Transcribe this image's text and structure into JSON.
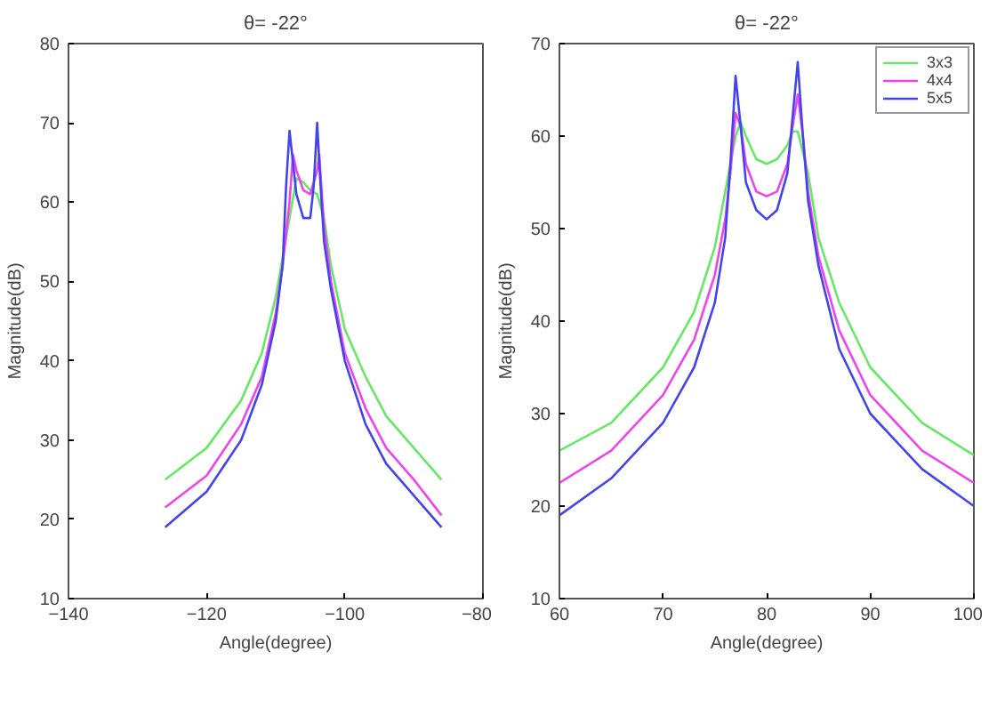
{
  "chart_data": [
    {
      "type": "line",
      "title": "θ= -22°",
      "xlabel": "Angle(degree)",
      "ylabel": "Magnitude(dB)",
      "xlim": [
        -140,
        -80
      ],
      "xticks": [
        -140,
        -120,
        -100,
        -80
      ],
      "ylim": [
        10,
        80
      ],
      "yticks": [
        10,
        20,
        30,
        40,
        50,
        60,
        70,
        80
      ],
      "grid": false,
      "legend": false,
      "series": [
        {
          "color": "#66e866",
          "x": [
            -126,
            -120,
            -115,
            -112,
            -110,
            -109,
            -108,
            -107,
            -106,
            -105,
            -104,
            -103,
            -102,
            -100,
            -97,
            -94,
            -90,
            -86
          ],
          "values": [
            25,
            29,
            35,
            41,
            48,
            53,
            58,
            63,
            62.5,
            61.5,
            61,
            58,
            52,
            44,
            38,
            33,
            29,
            25
          ]
        },
        {
          "color": "#ee44ee",
          "x": [
            -126,
            -120,
            -115,
            -112,
            -110,
            -109,
            -108,
            -107.5,
            -107,
            -106,
            -105,
            -104,
            -103.7,
            -103,
            -102,
            -100,
            -97,
            -94,
            -90,
            -86
          ],
          "values": [
            21.5,
            25.5,
            32,
            38,
            46,
            52,
            60,
            66,
            64,
            61.5,
            61,
            64,
            66,
            57,
            50,
            41,
            34,
            29,
            25,
            20.5
          ]
        },
        {
          "color": "#4444ee",
          "x": [
            -126,
            -120,
            -115,
            -112,
            -110,
            -109,
            -108.5,
            -108,
            -107.5,
            -107,
            -106,
            -105,
            -104.5,
            -104,
            -103.5,
            -103,
            -102,
            -100,
            -97,
            -94,
            -90,
            -86
          ],
          "values": [
            19,
            23.5,
            30,
            37,
            45,
            52,
            62,
            69,
            65,
            61,
            58,
            58,
            62,
            70,
            62,
            55,
            49,
            40,
            32,
            27,
            23,
            19
          ]
        }
      ]
    },
    {
      "type": "line",
      "title": "θ= -22°",
      "xlabel": "Angle(degree)",
      "ylabel": "Magnitude(dB)",
      "xlim": [
        60,
        100
      ],
      "xticks": [
        60,
        70,
        80,
        90,
        100
      ],
      "ylim": [
        10,
        70
      ],
      "yticks": [
        10,
        20,
        30,
        40,
        50,
        60,
        70
      ],
      "grid": false,
      "legend": "top right",
      "series": [
        {
          "name": "3x3",
          "color": "#66e866",
          "x": [
            60,
            65,
            70,
            73,
            75,
            76,
            77,
            77.5,
            78,
            79,
            80,
            81,
            82,
            82.5,
            83,
            84,
            85,
            87,
            90,
            95,
            100
          ],
          "values": [
            26,
            29,
            35,
            41,
            48,
            54,
            60,
            61.5,
            60,
            57.5,
            57,
            57.5,
            59,
            60.5,
            60.5,
            56,
            49,
            42,
            35,
            29,
            25.5
          ]
        },
        {
          "name": "4x4",
          "color": "#ee44ee",
          "x": [
            60,
            65,
            70,
            73,
            75,
            76,
            76.5,
            77,
            77.5,
            78,
            79,
            80,
            81,
            82,
            82.5,
            83,
            83.5,
            84,
            85,
            87,
            90,
            95,
            100
          ],
          "values": [
            22.5,
            26,
            32,
            38,
            45,
            51,
            56,
            62.5,
            61,
            57,
            54,
            53.5,
            54,
            57,
            61,
            64.5,
            60,
            54,
            47,
            39,
            32,
            26,
            22.5
          ]
        },
        {
          "name": "5x5",
          "color": "#4444ee",
          "x": [
            60,
            65,
            70,
            73,
            75,
            76,
            76.5,
            77,
            77.5,
            78,
            79,
            80,
            81,
            82,
            82.5,
            83,
            83.5,
            84,
            85,
            87,
            90,
            95,
            100
          ],
          "values": [
            19,
            23,
            29,
            35,
            42,
            49,
            57,
            66.5,
            61,
            55,
            52,
            51,
            52,
            56,
            62,
            68,
            60,
            53,
            46,
            37,
            30,
            24,
            20
          ]
        }
      ]
    }
  ]
}
